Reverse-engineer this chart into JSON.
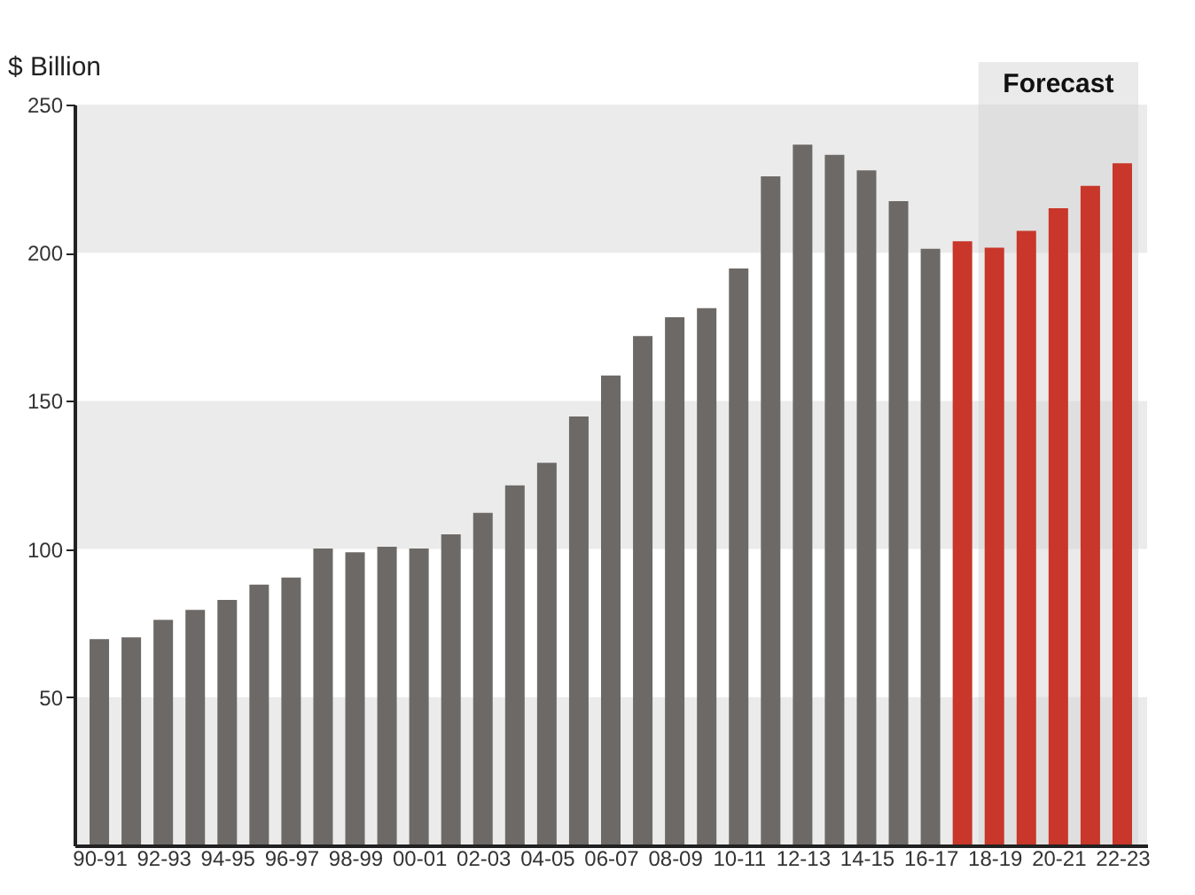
{
  "chart_data": {
    "type": "bar",
    "ylabel": "$ Billion",
    "categories": [
      "90-91",
      null,
      "92-93",
      null,
      "94-95",
      null,
      "96-97",
      null,
      "98-99",
      null,
      "00-01",
      null,
      "02-03",
      null,
      "04-05",
      null,
      "06-07",
      null,
      "08-09",
      null,
      "10-11",
      null,
      "12-13",
      null,
      "14-15",
      null,
      "16-17",
      null,
      "18-19",
      null,
      "20-21",
      null,
      "22-23"
    ],
    "values": [
      69.6,
      70.2,
      76.1,
      79.5,
      82.8,
      88,
      90.4,
      100.2,
      98.9,
      100.8,
      100.2,
      105,
      112.2,
      121.5,
      129.1,
      144.7,
      158.6,
      171.9,
      178.2,
      181.3,
      194.7,
      225.8,
      236.5,
      233,
      227.8,
      217.4,
      201.3,
      203.9,
      201.7,
      207.4,
      215,
      222.6,
      230.2
    ],
    "colors": [
      "#6d6966",
      "#6d6966",
      "#6d6966",
      "#6d6966",
      "#6d6966",
      "#6d6966",
      "#6d6966",
      "#6d6966",
      "#6d6966",
      "#6d6966",
      "#6d6966",
      "#6d6966",
      "#6d6966",
      "#6d6966",
      "#6d6966",
      "#6d6966",
      "#6d6966",
      "#6d6966",
      "#6d6966",
      "#6d6966",
      "#6d6966",
      "#6d6966",
      "#6d6966",
      "#6d6966",
      "#6d6966",
      "#6d6966",
      "#6d6966",
      "#c8372a",
      "#c8372a",
      "#c8372a",
      "#c8372a",
      "#c8372a",
      "#c8372a"
    ],
    "ylim": [
      0,
      250
    ],
    "yticks": [
      50,
      100,
      150,
      200,
      250
    ],
    "bands": [
      {
        "axis": "y",
        "from": 0,
        "to": 50,
        "label": null,
        "color": "#ebebeb"
      },
      {
        "axis": "y",
        "from": 100,
        "to": 150,
        "label": null,
        "color": "#ebebeb"
      },
      {
        "axis": "y",
        "from": 200,
        "to": 250,
        "label": null,
        "color": "#ebebeb"
      },
      {
        "axis": "x",
        "from": "18-19",
        "to": "22-23",
        "label": "Forecast",
        "color": "#d0d0d0"
      }
    ]
  }
}
